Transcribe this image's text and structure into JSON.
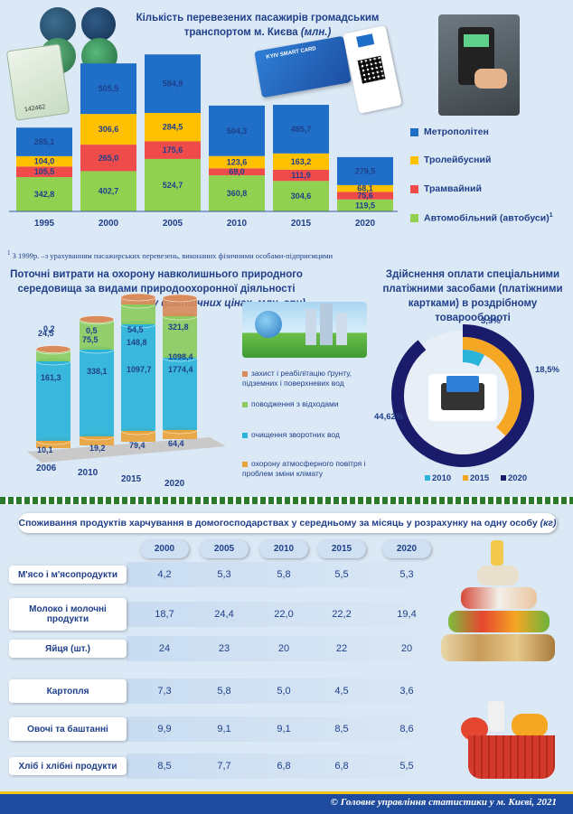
{
  "transport": {
    "title_line1": "Кількість перевезених пасажирів громадським",
    "title_line2": "транспортом м. Києва",
    "title_unit": "(млн.)",
    "footnote_mark": "1",
    "footnote": "З 1999р. –з урахуванням пасажирських перевезень, виконаних фізичними особами-підприємцями",
    "ticket_number": "142462",
    "card_label": "KYIV SMART CARD"
  },
  "chart_data": [
    {
      "type": "bar",
      "stacked": true,
      "categories": [
        "1995",
        "2000",
        "2005",
        "2010",
        "2015",
        "2020"
      ],
      "series": [
        {
          "name": "Автомобільний (автобуси)",
          "color": "#92d050",
          "values": [
            342.8,
            402.7,
            524.7,
            360.8,
            304.6,
            119.5
          ]
        },
        {
          "name": "Трамвайний",
          "color": "#f04b4b",
          "values": [
            105.5,
            265.0,
            175.6,
            69.0,
            111.9,
            75.6
          ]
        },
        {
          "name": "Тролейбусний",
          "color": "#ffc000",
          "values": [
            104.0,
            306.6,
            284.5,
            123.6,
            163.2,
            68.1
          ]
        },
        {
          "name": "Метрополітен",
          "color": "#1f6fc8",
          "values": [
            285.1,
            505.5,
            584.9,
            504.3,
            485.7,
            279.5
          ]
        }
      ],
      "labels": [
        [
          "342,8",
          "402,7",
          "524,7",
          "360,8",
          "304,6",
          "119,5"
        ],
        [
          "105,5",
          "265,0",
          "175,6",
          "69,0",
          "111,9",
          "75,6"
        ],
        [
          "104,0",
          "306,6",
          "284,5",
          "123,6",
          "163,2",
          "68,1"
        ],
        [
          "285,1",
          "505,5",
          "584,9",
          "504,3",
          "485,7",
          "279,5"
        ]
      ],
      "legend_order": [
        "Метрополітен",
        "Тролейбусний",
        "Трамвайний",
        "Автомобільний (автобуси)"
      ],
      "legend_placement": "right",
      "legend_superscript": "1"
    },
    {
      "type": "bar",
      "stacked": true,
      "title_line1": "Поточні витрати  на охорону навколишнього природного",
      "title_line2": "середовища за видами природоохоронної діяльності",
      "subtitle": "(у фактичних цінах, млн. грн)",
      "categories": [
        "2006",
        "2010",
        "2015",
        "2020"
      ],
      "series": [
        {
          "name": "охорону атмосферного повітря і проблем зміни клімату",
          "color": "#e8a33a",
          "values": [
            10.1,
            19.2,
            79.4,
            64.4
          ]
        },
        {
          "name": "очищення зворотних вод",
          "color": "#2bb3d9",
          "values": [
            161.3,
            338.1,
            1097.7,
            1774.4
          ]
        },
        {
          "name": "поводження з відходами",
          "color": "#8ccb5e",
          "values": [
            24.5,
            75.5,
            148.8,
            1098.4
          ]
        },
        {
          "name": "захист і реабілітацію ґрунту, підземних і поверхневих вод",
          "color": "#d98b5c",
          "values": [
            0.2,
            0.5,
            54.5,
            321.8
          ]
        }
      ],
      "labels": [
        [
          "10,1",
          "19,2",
          "79,4",
          "64,4"
        ],
        [
          "161,3",
          "338,1",
          "1097,7",
          "1774,4"
        ],
        [
          "24,5",
          "75,5",
          "148,8",
          "1098,4"
        ],
        [
          "0,2",
          "0,5",
          "54,5",
          "321,8"
        ]
      ],
      "legend": [
        "захист і реабілітацію ґрунту, підземних і поверхневих вод",
        "поводження з відходами",
        "очищення зворотних вод",
        "охорону атмосферного повітря і проблем зміни клімату"
      ],
      "legend_placement": "right"
    },
    {
      "type": "pie",
      "variant": "radial-bar",
      "title_line1": "Здійснення оплати спеціальними",
      "title_line2": "платіжними засобами (платіжними",
      "title_line3": "картками) в роздрібному товарообороті",
      "series": [
        {
          "name": "2010",
          "value": 3.9,
          "label": "3,9%",
          "color": "#2bb3d9"
        },
        {
          "name": "2015",
          "value": 18.5,
          "label": "18,5%",
          "color": "#f5a623"
        },
        {
          "name": "2020",
          "value": 44.62,
          "label": "44,62%",
          "color": "#1b1b6b"
        }
      ],
      "legend_placement": "bottom"
    },
    {
      "type": "table",
      "title": "Споживання продуктів харчування в домогосподарствах у середньому за місяць у розрахунку на одну особу",
      "unit": "(кг)",
      "columns": [
        "2000",
        "2005",
        "2010",
        "2015",
        "2020"
      ],
      "rows": [
        {
          "label": "М'ясо і м'ясопродукти",
          "values": [
            "4,2",
            "5,3",
            "5,8",
            "5,5",
            "5,3"
          ]
        },
        {
          "label": "Молоко і молочні продукти",
          "values": [
            "18,7",
            "24,4",
            "22,0",
            "22,2",
            "19,4"
          ]
        },
        {
          "label": "Яйця (шт.)",
          "values": [
            "24",
            "23",
            "20",
            "22",
            "20"
          ]
        },
        {
          "label": "Картопля",
          "values": [
            "7,3",
            "5,8",
            "5,0",
            "4,5",
            "3,6"
          ]
        },
        {
          "label": "Овочі та баштанні",
          "values": [
            "9,9",
            "9,1",
            "9,1",
            "8,5",
            "8,6"
          ]
        },
        {
          "label": "Хліб і хлібні продукти",
          "values": [
            "8,5",
            "7,7",
            "6,8",
            "6,8",
            "5,5"
          ]
        }
      ]
    }
  ],
  "footer": {
    "text": "© Головне управління статистики у м. Києві, 2021"
  },
  "colors": {
    "background": "#dbe8f5",
    "title": "#1f3f8a",
    "footer": "#1e4b9e",
    "footer_border": "#f3c21a"
  }
}
